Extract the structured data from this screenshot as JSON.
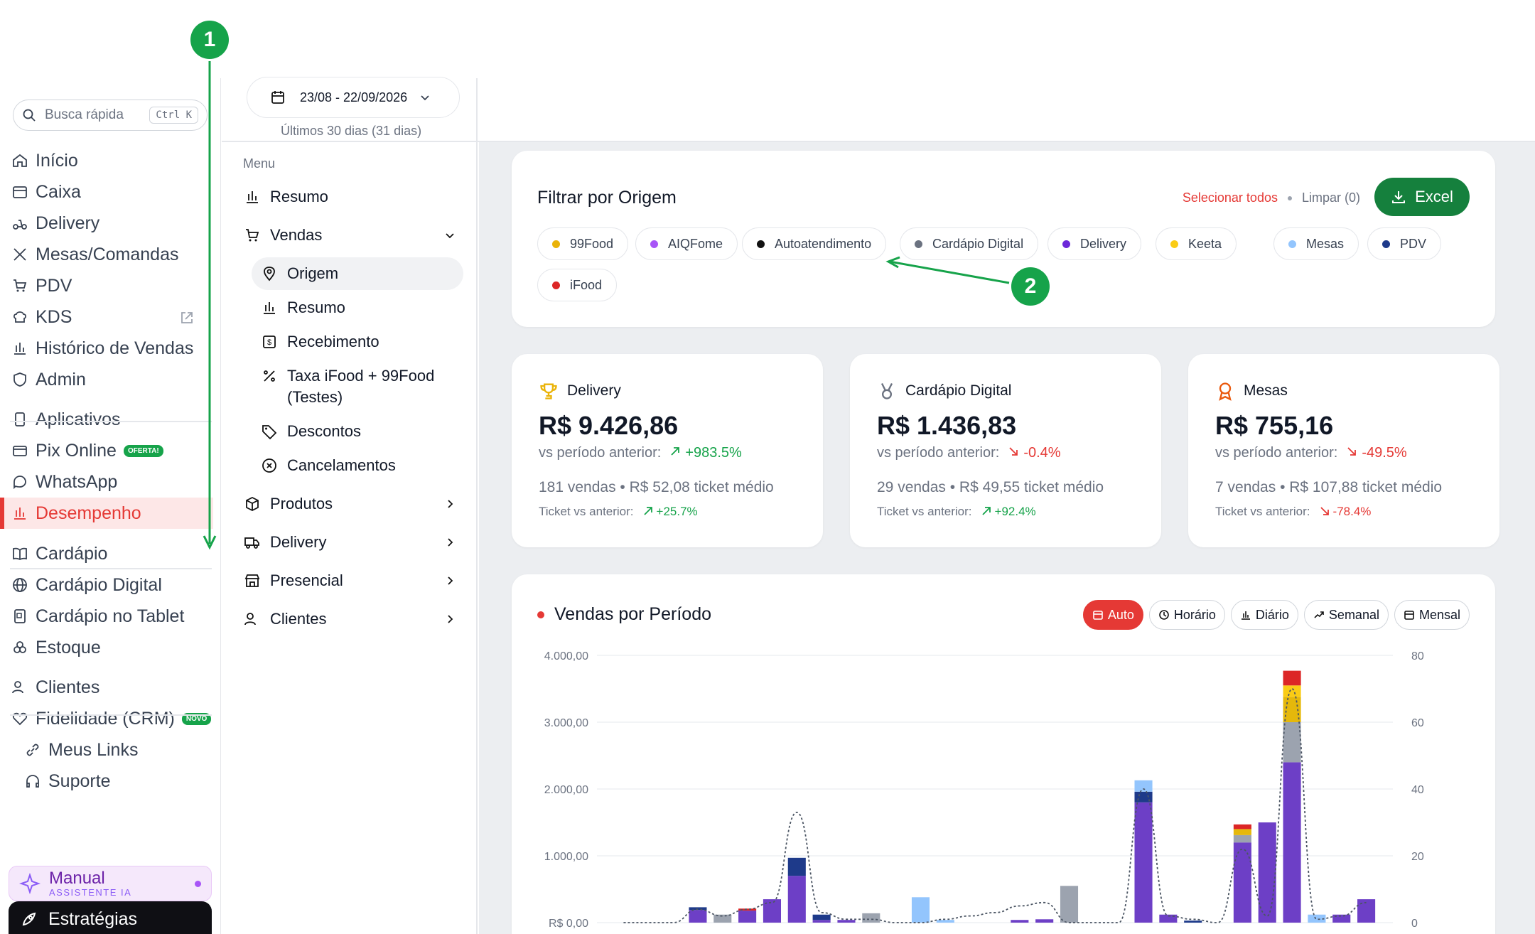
{
  "sidebar": {
    "search_placeholder": "Busca rápida",
    "search_kbd": "Ctrl K",
    "items": [
      {
        "label": "Início",
        "icon": "home-icon"
      },
      {
        "label": "Caixa",
        "icon": "register-icon"
      },
      {
        "label": "Delivery",
        "icon": "scooter-icon"
      },
      {
        "label": "Mesas/Comandas",
        "icon": "utensils-icon"
      },
      {
        "label": "PDV",
        "icon": "cart-icon"
      },
      {
        "label": "KDS",
        "icon": "chef-hat-icon"
      },
      {
        "label": "Histórico de Vendas",
        "icon": "bar-chart-icon"
      },
      {
        "label": "Admin",
        "icon": "shield-icon"
      },
      {
        "label": "Aplicativos",
        "icon": "phone-icon"
      },
      {
        "label": "Pix Online",
        "icon": "card-icon",
        "badge": "OFERTA!"
      },
      {
        "label": "WhatsApp",
        "icon": "chat-icon"
      },
      {
        "label": "Desempenho",
        "icon": "bar-chart-icon"
      },
      {
        "label": "Cardápio",
        "icon": "book-icon"
      },
      {
        "label": "Cardápio Digital",
        "icon": "globe-icon"
      },
      {
        "label": "Cardápio no Tablet",
        "icon": "tablet-icon"
      },
      {
        "label": "Estoque",
        "icon": "boxes-icon"
      },
      {
        "label": "Clientes",
        "icon": "users-icon"
      },
      {
        "label": "Fidelidade (CRM)",
        "icon": "heart-icon",
        "badge": "NOVO"
      },
      {
        "label": "Meus Links",
        "icon": "link-icon"
      },
      {
        "label": "Suporte",
        "icon": "headset-icon"
      }
    ],
    "manual_title": "Manual",
    "manual_sub": "ASSISTENTE IA",
    "estrategias": "Estratégias"
  },
  "date_picker": {
    "range": "23/08 - 22/09/2026",
    "caption": "Últimos 30 dias (31 dias)"
  },
  "submenu": {
    "title": "Menu",
    "items": [
      {
        "label": "Resumo"
      },
      {
        "label": "Vendas"
      },
      {
        "label": "Origem"
      },
      {
        "label": "Resumo"
      },
      {
        "label": "Recebimento"
      },
      {
        "label": "Taxa iFood + 99Food"
      },
      {
        "label": "(Testes)"
      },
      {
        "label": "Descontos"
      },
      {
        "label": "Cancelamentos"
      },
      {
        "label": "Produtos"
      },
      {
        "label": "Delivery"
      },
      {
        "label": "Presencial"
      },
      {
        "label": "Clientes"
      }
    ]
  },
  "filter": {
    "title": "Filtrar por Origem",
    "select_all": "Selecionar todos",
    "clear": "Limpar (0)",
    "excel": "Excel",
    "chips": [
      {
        "label": "99Food",
        "color": "#eab308"
      },
      {
        "label": "AIQFome",
        "color": "#a855f7"
      },
      {
        "label": "Autoatendimento",
        "color": "#111111"
      },
      {
        "label": "Cardápio Digital",
        "color": "#6b7280"
      },
      {
        "label": "Delivery",
        "color": "#6d28d9"
      },
      {
        "label": "Keeta",
        "color": "#facc15"
      },
      {
        "label": "Mesas",
        "color": "#93c5fd"
      },
      {
        "label": "PDV",
        "color": "#1e3a8a"
      },
      {
        "label": "iFood",
        "color": "#dc2626"
      }
    ]
  },
  "kpis": [
    {
      "title": "Delivery",
      "icon": "trophy-icon",
      "value": "R$ 9.426,86",
      "vs_label": "vs período anterior:",
      "vs": "+983.5%",
      "vs_dir": "up",
      "sales": "181 vendas • R$ 52,08 ticket médio",
      "ticket_label": "Ticket vs anterior:",
      "ticket": "+25.7%",
      "ticket_dir": "up"
    },
    {
      "title": "Cardápio Digital",
      "icon": "medal-icon",
      "value": "R$ 1.436,83",
      "vs_label": "vs período anterior:",
      "vs": "-0.4%",
      "vs_dir": "down",
      "sales": "29 vendas • R$ 49,55 ticket médio",
      "ticket_label": "Ticket vs anterior:",
      "ticket": "+92.4%",
      "ticket_dir": "up"
    },
    {
      "title": "Mesas",
      "icon": "award-icon",
      "value": "R$ 755,16",
      "vs_label": "vs período anterior:",
      "vs": "-49.5%",
      "vs_dir": "down",
      "sales": "7 vendas • R$ 107,88 ticket médio",
      "ticket_label": "Ticket vs anterior:",
      "ticket": "-78.4%",
      "ticket_dir": "down"
    }
  ],
  "sales_chart": {
    "title": "Vendas por Período",
    "buttons": [
      "Auto",
      "Horário",
      "Diário",
      "Semanal",
      "Mensal"
    ],
    "active": "Auto"
  },
  "annotations": {
    "one": "1",
    "two": "2"
  },
  "chart_data": {
    "type": "bar",
    "stacked": true,
    "y_left_ticks": [
      "R$ 0,00",
      "1.000,00",
      "2.000,00",
      "3.000,00",
      "4.000,00"
    ],
    "y_right_ticks": [
      "0",
      "20",
      "40",
      "60",
      "80"
    ],
    "ylim": [
      0,
      4000
    ],
    "y2lim": [
      0,
      80
    ],
    "series": [
      {
        "color": "#6d3fc6",
        "values": [
          0,
          0,
          0,
          190,
          0,
          180,
          350,
          700,
          40,
          40,
          0,
          0,
          0,
          0,
          0,
          0,
          40,
          50,
          0,
          0,
          0,
          1800,
          120,
          0,
          0,
          1200,
          1500,
          2400,
          0,
          120,
          350
        ]
      },
      {
        "color": "#1e3a8a",
        "values": [
          0,
          0,
          0,
          40,
          0,
          0,
          0,
          270,
          80,
          0,
          0,
          0,
          0,
          0,
          0,
          0,
          0,
          0,
          0,
          0,
          0,
          160,
          0,
          30,
          0,
          0,
          0,
          0,
          0,
          0,
          0
        ]
      },
      {
        "color": "#93c5fd",
        "values": [
          0,
          0,
          0,
          0,
          0,
          0,
          0,
          0,
          0,
          0,
          0,
          0,
          380,
          40,
          0,
          0,
          0,
          0,
          0,
          0,
          0,
          170,
          0,
          0,
          0,
          0,
          0,
          0,
          120,
          0,
          0
        ]
      },
      {
        "color": "#9ca3af",
        "values": [
          0,
          0,
          0,
          0,
          120,
          0,
          0,
          0,
          0,
          0,
          140,
          0,
          0,
          0,
          0,
          0,
          0,
          0,
          550,
          0,
          0,
          0,
          0,
          0,
          0,
          110,
          0,
          600,
          0,
          0,
          0
        ]
      },
      {
        "color": "#e5b80b",
        "values": [
          0,
          0,
          0,
          0,
          0,
          0,
          0,
          0,
          0,
          0,
          0,
          0,
          0,
          0,
          0,
          0,
          0,
          0,
          0,
          0,
          0,
          0,
          0,
          0,
          0,
          90,
          0,
          380,
          0,
          0,
          0
        ]
      },
      {
        "color": "#facc15",
        "values": [
          0,
          0,
          0,
          0,
          0,
          0,
          0,
          0,
          0,
          0,
          0,
          0,
          0,
          0,
          0,
          0,
          0,
          0,
          0,
          0,
          0,
          0,
          0,
          0,
          0,
          0,
          0,
          170,
          0,
          0,
          0
        ]
      },
      {
        "color": "#dc2626",
        "values": [
          0,
          0,
          0,
          0,
          0,
          30,
          0,
          0,
          0,
          0,
          0,
          0,
          0,
          0,
          0,
          0,
          0,
          0,
          0,
          0,
          0,
          0,
          0,
          0,
          0,
          70,
          0,
          220,
          0,
          0,
          0
        ]
      }
    ],
    "line_count_values": [
      0,
      0,
      0,
      4,
      2,
      4,
      6,
      33,
      3,
      1,
      1,
      0,
      0,
      1,
      2,
      3,
      5,
      6,
      0,
      0,
      0,
      40,
      2,
      1,
      0,
      22,
      2,
      70,
      1,
      2,
      6
    ]
  }
}
